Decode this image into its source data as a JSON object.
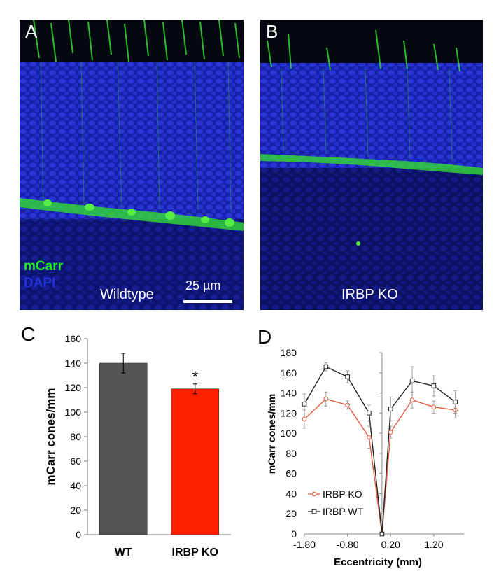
{
  "panels": {
    "A": {
      "letter": "A",
      "stain1": "mCarr",
      "stain2": "DAPI",
      "caption": "Wildtype",
      "scale_label": "25 µm",
      "colors": {
        "stain1": "#22ee22",
        "stain2": "#2233dd"
      }
    },
    "B": {
      "letter": "B",
      "caption": "IRBP KO"
    },
    "C": {
      "letter": "C"
    },
    "D": {
      "letter": "D"
    }
  },
  "chart_data": [
    {
      "type": "bar",
      "panel": "C",
      "categories": [
        "WT",
        "IRBP KO"
      ],
      "values": [
        140,
        119
      ],
      "errors": [
        8,
        4
      ],
      "colors": [
        "#555555",
        "#ff2200"
      ],
      "annotations": [
        "",
        "*"
      ],
      "ylabel": "mCarr cones/mm",
      "ylim": [
        0,
        160
      ],
      "yticks": [
        0,
        20,
        40,
        60,
        80,
        100,
        120,
        140,
        160
      ],
      "grid": false
    },
    {
      "type": "line",
      "panel": "D",
      "x": [
        -1.8,
        -1.3,
        -0.8,
        -0.3,
        0.0,
        0.2,
        0.7,
        1.2,
        1.7
      ],
      "series": [
        {
          "name": "IRBP KO",
          "color": "#e8583e",
          "values": [
            114,
            134,
            128,
            96,
            0,
            101,
            133,
            126,
            123
          ],
          "errors": [
            9,
            7,
            4,
            11,
            0,
            6,
            8,
            6,
            8
          ]
        },
        {
          "name": "IRBP WT",
          "color": "#222222",
          "values": [
            129,
            166,
            156,
            120,
            0,
            124,
            152,
            147,
            131
          ],
          "errors": [
            10,
            4,
            6,
            8,
            0,
            12,
            14,
            10,
            11
          ]
        }
      ],
      "xlabel": "Eccentricity (mm)",
      "ylabel": "mCarr cones/mm",
      "xlim": [
        -1.8,
        1.9
      ],
      "ylim": [
        0,
        180
      ],
      "xticks": [
        -1.8,
        -0.8,
        0.2,
        1.2
      ],
      "xtick_labels": [
        "-1.80",
        "-0.80",
        "0.20",
        "1.20"
      ],
      "yticks": [
        0,
        20,
        40,
        60,
        80,
        100,
        120,
        140,
        160,
        180
      ],
      "legend_position": "bottom-left",
      "grid": false
    }
  ]
}
